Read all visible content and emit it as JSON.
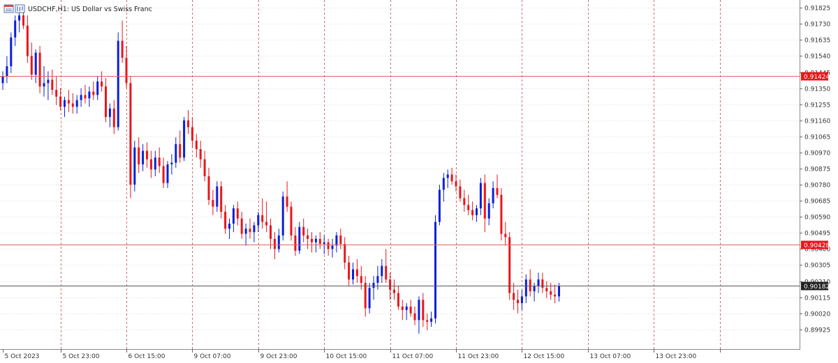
{
  "header": {
    "title": "USDCHF,H1:  US Dollar vs Swiss Franc",
    "icon": "chart-window-icon"
  },
  "colors": {
    "bull": "#0a1fd6",
    "bear": "#e8161b",
    "grid": "#d8d8d8",
    "vgrid": "#d36b6b",
    "hline": "#e06060",
    "current_line": "#555555",
    "badge_red": "#e8161b",
    "badge_dark": "#222222"
  },
  "chart_data": {
    "type": "candlestick",
    "symbol": "USDCHF",
    "timeframe": "H1",
    "ylim": [
      0.8985,
      0.9183
    ],
    "y_ticks": [
      "0.91825",
      "0.91730",
      "0.91635",
      "0.91540",
      "0.91445",
      "0.91350",
      "0.91255",
      "0.91160",
      "0.91065",
      "0.90970",
      "0.90875",
      "0.90780",
      "0.90685",
      "0.90590",
      "0.90495",
      "0.90400",
      "0.90305",
      "0.90210",
      "0.90115",
      "0.90020",
      "0.89925"
    ],
    "x_labels": [
      {
        "label": "5 Oct 2023",
        "index": 0
      },
      {
        "label": "5 Oct 23:00",
        "index": 14
      },
      {
        "label": "6 Oct 15:00",
        "index": 30
      },
      {
        "label": "9 Oct 07:00",
        "index": 46
      },
      {
        "label": "9 Oct 23:00",
        "index": 62
      },
      {
        "label": "10 Oct 15:00",
        "index": 78
      },
      {
        "label": "11 Oct 07:00",
        "index": 94
      },
      {
        "label": "11 Oct 23:00",
        "index": 110
      },
      {
        "label": "12 Oct 15:00",
        "index": 126
      },
      {
        "label": "13 Oct 07:00",
        "index": 142
      },
      {
        "label": "13 Oct 23:00",
        "index": 158
      },
      {
        "label": "",
        "index": 174
      }
    ],
    "horizontal_lines": [
      {
        "price": 0.91424,
        "label": "0.91424",
        "style": "red"
      },
      {
        "price": 0.90428,
        "label": "0.90428",
        "style": "red"
      },
      {
        "price": 0.90182,
        "label": "0.90182",
        "style": "dark"
      }
    ],
    "candles": [
      [
        0.9138,
        0.9145,
        0.9134,
        0.9142
      ],
      [
        0.9142,
        0.9154,
        0.9138,
        0.9148
      ],
      [
        0.9148,
        0.9168,
        0.9144,
        0.9165
      ],
      [
        0.9165,
        0.9178,
        0.916,
        0.9175
      ],
      [
        0.9175,
        0.9182,
        0.9168,
        0.9178
      ],
      [
        0.9178,
        0.9183,
        0.917,
        0.9172
      ],
      [
        0.9172,
        0.9178,
        0.915,
        0.9154
      ],
      [
        0.9154,
        0.9162,
        0.914,
        0.9143
      ],
      [
        0.9143,
        0.9158,
        0.9138,
        0.9156
      ],
      [
        0.9156,
        0.916,
        0.9132,
        0.9136
      ],
      [
        0.9136,
        0.9148,
        0.913,
        0.9138
      ],
      [
        0.9138,
        0.9145,
        0.9128,
        0.914
      ],
      [
        0.914,
        0.9146,
        0.9131,
        0.9134
      ],
      [
        0.9134,
        0.9142,
        0.9125,
        0.913
      ],
      [
        0.913,
        0.9135,
        0.9122,
        0.9124
      ],
      [
        0.9124,
        0.913,
        0.9118,
        0.9128
      ],
      [
        0.9128,
        0.9134,
        0.9121,
        0.9126
      ],
      [
        0.9126,
        0.9132,
        0.912,
        0.9124
      ],
      [
        0.9124,
        0.9131,
        0.912,
        0.9128
      ],
      [
        0.9128,
        0.9135,
        0.9124,
        0.9131
      ],
      [
        0.9131,
        0.9137,
        0.9126,
        0.9129
      ],
      [
        0.9129,
        0.9136,
        0.9124,
        0.9133
      ],
      [
        0.9133,
        0.9139,
        0.9128,
        0.9131
      ],
      [
        0.9131,
        0.9142,
        0.9128,
        0.9139
      ],
      [
        0.9139,
        0.9145,
        0.9133,
        0.9136
      ],
      [
        0.9136,
        0.9141,
        0.9115,
        0.9118
      ],
      [
        0.9118,
        0.9126,
        0.9112,
        0.9123
      ],
      [
        0.9123,
        0.9128,
        0.9108,
        0.9112
      ],
      [
        0.9112,
        0.9168,
        0.911,
        0.9163
      ],
      [
        0.9163,
        0.9175,
        0.915,
        0.9153
      ],
      [
        0.9153,
        0.916,
        0.9135,
        0.9138
      ],
      [
        0.9138,
        0.9142,
        0.907,
        0.9078
      ],
      [
        0.9078,
        0.9104,
        0.9074,
        0.91
      ],
      [
        0.91,
        0.9106,
        0.9085,
        0.909
      ],
      [
        0.909,
        0.9102,
        0.9086,
        0.9098
      ],
      [
        0.9098,
        0.9103,
        0.9088,
        0.9093
      ],
      [
        0.9093,
        0.9098,
        0.9082,
        0.9087
      ],
      [
        0.9087,
        0.9098,
        0.9083,
        0.9094
      ],
      [
        0.9094,
        0.91,
        0.9085,
        0.9089
      ],
      [
        0.9089,
        0.9094,
        0.9076,
        0.9079
      ],
      [
        0.9079,
        0.9092,
        0.9076,
        0.909
      ],
      [
        0.909,
        0.9096,
        0.9084,
        0.9091
      ],
      [
        0.9091,
        0.9106,
        0.9088,
        0.9102
      ],
      [
        0.9102,
        0.911,
        0.9091,
        0.9094
      ],
      [
        0.9094,
        0.9118,
        0.9092,
        0.9116
      ],
      [
        0.9116,
        0.9122,
        0.9108,
        0.9112
      ],
      [
        0.9112,
        0.9118,
        0.91,
        0.9104
      ],
      [
        0.9104,
        0.9108,
        0.9094,
        0.9099
      ],
      [
        0.9099,
        0.9104,
        0.9088,
        0.9093
      ],
      [
        0.9093,
        0.9098,
        0.908,
        0.9083
      ],
      [
        0.9083,
        0.9088,
        0.9066,
        0.9069
      ],
      [
        0.9069,
        0.9075,
        0.906,
        0.9065
      ],
      [
        0.9065,
        0.908,
        0.9062,
        0.9077
      ],
      [
        0.9077,
        0.908,
        0.9058,
        0.9062
      ],
      [
        0.9062,
        0.9066,
        0.9049,
        0.9052
      ],
      [
        0.9052,
        0.9058,
        0.9046,
        0.9055
      ],
      [
        0.9055,
        0.9066,
        0.905,
        0.9064
      ],
      [
        0.9064,
        0.9068,
        0.9054,
        0.9058
      ],
      [
        0.9058,
        0.9062,
        0.9046,
        0.9049
      ],
      [
        0.9049,
        0.9055,
        0.9042,
        0.9052
      ],
      [
        0.9052,
        0.9058,
        0.9046,
        0.905
      ],
      [
        0.905,
        0.9056,
        0.9044,
        0.9054
      ],
      [
        0.9054,
        0.9062,
        0.905,
        0.906
      ],
      [
        0.906,
        0.907,
        0.9052,
        0.9056
      ],
      [
        0.9056,
        0.9068,
        0.905,
        0.9054
      ],
      [
        0.9054,
        0.9058,
        0.904,
        0.9046
      ],
      [
        0.9046,
        0.905,
        0.9034,
        0.904
      ],
      [
        0.904,
        0.9052,
        0.9038,
        0.9048
      ],
      [
        0.9048,
        0.9074,
        0.9045,
        0.9071
      ],
      [
        0.9071,
        0.908,
        0.9062,
        0.9065
      ],
      [
        0.9065,
        0.9068,
        0.9045,
        0.9048
      ],
      [
        0.9048,
        0.9053,
        0.9036,
        0.9039
      ],
      [
        0.9039,
        0.9056,
        0.9037,
        0.9053
      ],
      [
        0.9053,
        0.9058,
        0.9044,
        0.9048
      ],
      [
        0.9048,
        0.9052,
        0.904,
        0.9046
      ],
      [
        0.9046,
        0.905,
        0.9038,
        0.9044
      ],
      [
        0.9044,
        0.9048,
        0.9038,
        0.9046
      ],
      [
        0.9046,
        0.905,
        0.904,
        0.9043
      ],
      [
        0.9043,
        0.9048,
        0.9037,
        0.9044
      ],
      [
        0.9044,
        0.9046,
        0.9036,
        0.904
      ],
      [
        0.904,
        0.9046,
        0.9035,
        0.9042
      ],
      [
        0.9042,
        0.905,
        0.9038,
        0.9048
      ],
      [
        0.9048,
        0.9052,
        0.904,
        0.9043
      ],
      [
        0.9043,
        0.9047,
        0.9028,
        0.9032
      ],
      [
        0.9032,
        0.9036,
        0.9018,
        0.9022
      ],
      [
        0.9022,
        0.9032,
        0.9019,
        0.9028
      ],
      [
        0.9028,
        0.9034,
        0.902,
        0.9024
      ],
      [
        0.9024,
        0.903,
        0.9016,
        0.902
      ],
      [
        0.902,
        0.9024,
        0.9,
        0.9005
      ],
      [
        0.9005,
        0.902,
        0.9002,
        0.9017
      ],
      [
        0.9017,
        0.9024,
        0.901,
        0.902
      ],
      [
        0.902,
        0.903,
        0.9016,
        0.9024
      ],
      [
        0.9024,
        0.9034,
        0.902,
        0.903
      ],
      [
        0.903,
        0.904,
        0.902,
        0.9022
      ],
      [
        0.9022,
        0.9026,
        0.901,
        0.9016
      ],
      [
        0.9016,
        0.9022,
        0.901,
        0.9014
      ],
      [
        0.9014,
        0.9018,
        0.9004,
        0.9006
      ],
      [
        0.9006,
        0.901,
        0.8998,
        0.9004
      ],
      [
        0.9004,
        0.9008,
        0.8998,
        0.9006
      ],
      [
        0.9006,
        0.901,
        0.9,
        0.9002
      ],
      [
        0.9002,
        0.9006,
        0.8995,
        0.8998
      ],
      [
        0.8998,
        0.9012,
        0.899,
        0.901
      ],
      [
        0.901,
        0.9014,
        0.8994,
        0.8998
      ],
      [
        0.8998,
        0.9002,
        0.8992,
        0.8997
      ],
      [
        0.8997,
        0.9003,
        0.8994,
        0.8999
      ],
      [
        0.8999,
        0.906,
        0.8996,
        0.9056
      ],
      [
        0.9056,
        0.9078,
        0.9054,
        0.9075
      ],
      [
        0.9075,
        0.9085,
        0.9068,
        0.9082
      ],
      [
        0.9082,
        0.9087,
        0.9076,
        0.9084
      ],
      [
        0.9084,
        0.9088,
        0.9078,
        0.908
      ],
      [
        0.908,
        0.9084,
        0.9074,
        0.9077
      ],
      [
        0.9077,
        0.9081,
        0.9068,
        0.907
      ],
      [
        0.907,
        0.9075,
        0.9062,
        0.9066
      ],
      [
        0.9066,
        0.9072,
        0.906,
        0.9063
      ],
      [
        0.9063,
        0.9068,
        0.9057,
        0.906
      ],
      [
        0.906,
        0.9066,
        0.9056,
        0.9064
      ],
      [
        0.9064,
        0.9082,
        0.906,
        0.9079
      ],
      [
        0.9079,
        0.9084,
        0.905,
        0.9058
      ],
      [
        0.9058,
        0.907,
        0.9054,
        0.9067
      ],
      [
        0.9067,
        0.908,
        0.9064,
        0.9076
      ],
      [
        0.9076,
        0.9084,
        0.907,
        0.9072
      ],
      [
        0.9072,
        0.9076,
        0.9045,
        0.9049
      ],
      [
        0.9049,
        0.9056,
        0.9042,
        0.9047
      ],
      [
        0.9047,
        0.905,
        0.901,
        0.9014
      ],
      [
        0.9014,
        0.902,
        0.9004,
        0.901
      ],
      [
        0.901,
        0.9016,
        0.9002,
        0.9008
      ],
      [
        0.9008,
        0.9016,
        0.9004,
        0.9012
      ],
      [
        0.9012,
        0.9025,
        0.9008,
        0.9022
      ],
      [
        0.9022,
        0.9028,
        0.9012,
        0.9015
      ],
      [
        0.9015,
        0.902,
        0.9009,
        0.9018
      ],
      [
        0.9018,
        0.9026,
        0.9014,
        0.9022
      ],
      [
        0.9022,
        0.9026,
        0.9014,
        0.9017
      ],
      [
        0.9017,
        0.9021,
        0.9011,
        0.9015
      ],
      [
        0.9015,
        0.902,
        0.901,
        0.9013
      ],
      [
        0.9013,
        0.9019,
        0.9008,
        0.9012
      ],
      [
        0.9012,
        0.902,
        0.9009,
        0.9018
      ]
    ]
  }
}
